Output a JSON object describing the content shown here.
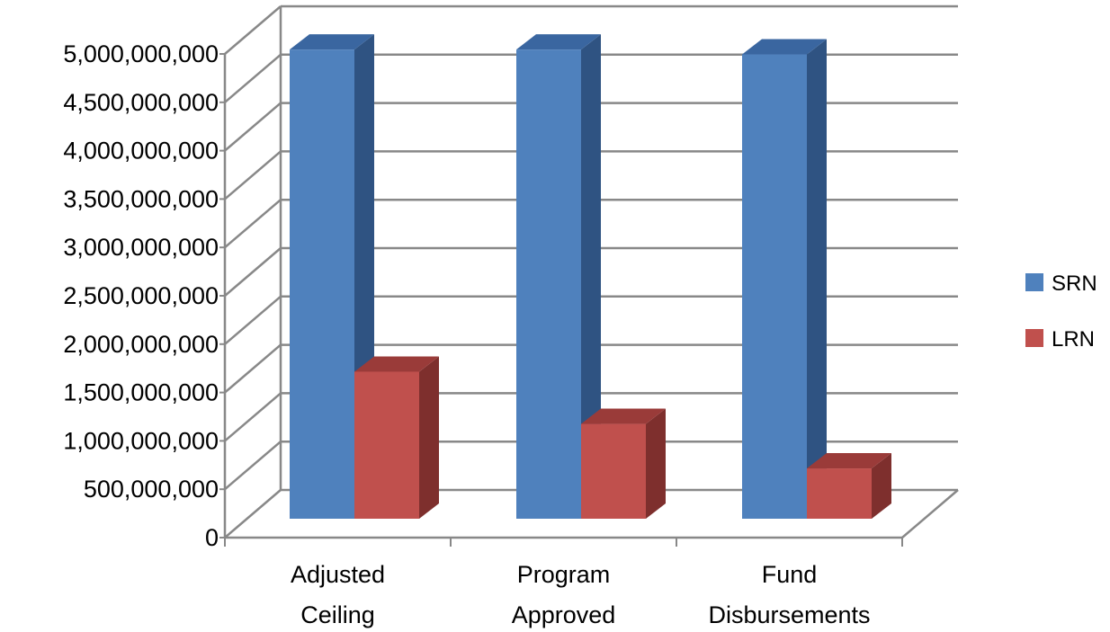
{
  "chart_data": {
    "type": "bar",
    "title": "",
    "xlabel": "",
    "ylabel": "",
    "categories": [
      [
        "Adjusted",
        "Ceiling"
      ],
      [
        "Program",
        "Approved"
      ],
      [
        "Fund",
        "Disbursements"
      ]
    ],
    "series": [
      {
        "name": "SRN",
        "values": [
          4850000000,
          4850000000,
          4800000000
        ]
      },
      {
        "name": "LRN",
        "values": [
          1520000000,
          980000000,
          520000000
        ]
      }
    ],
    "ylim": [
      0,
      5000000000
    ],
    "yticks": [
      0,
      500000000,
      1000000000,
      1500000000,
      2000000000,
      2500000000,
      3000000000,
      3500000000,
      4000000000,
      4500000000,
      5000000000
    ],
    "ytick_labels": [
      "0",
      "500,000,000",
      "1,000,000,000",
      "1,500,000,000",
      "2,000,000,000",
      "2,500,000,000",
      "3,000,000,000",
      "3,500,000,000",
      "4,000,000,000",
      "4,500,000,000",
      "5,000,000,000"
    ],
    "grid": true,
    "three_d": true,
    "legend_position": "right",
    "colors": {
      "SRN": "#4F81BD",
      "SRN_side": "#2F5382",
      "SRN_top": "#3A66A0",
      "LRN": "#C0504D",
      "LRN_side": "#7E2F2D",
      "LRN_top": "#9A3B39",
      "grid": "#888888"
    }
  }
}
